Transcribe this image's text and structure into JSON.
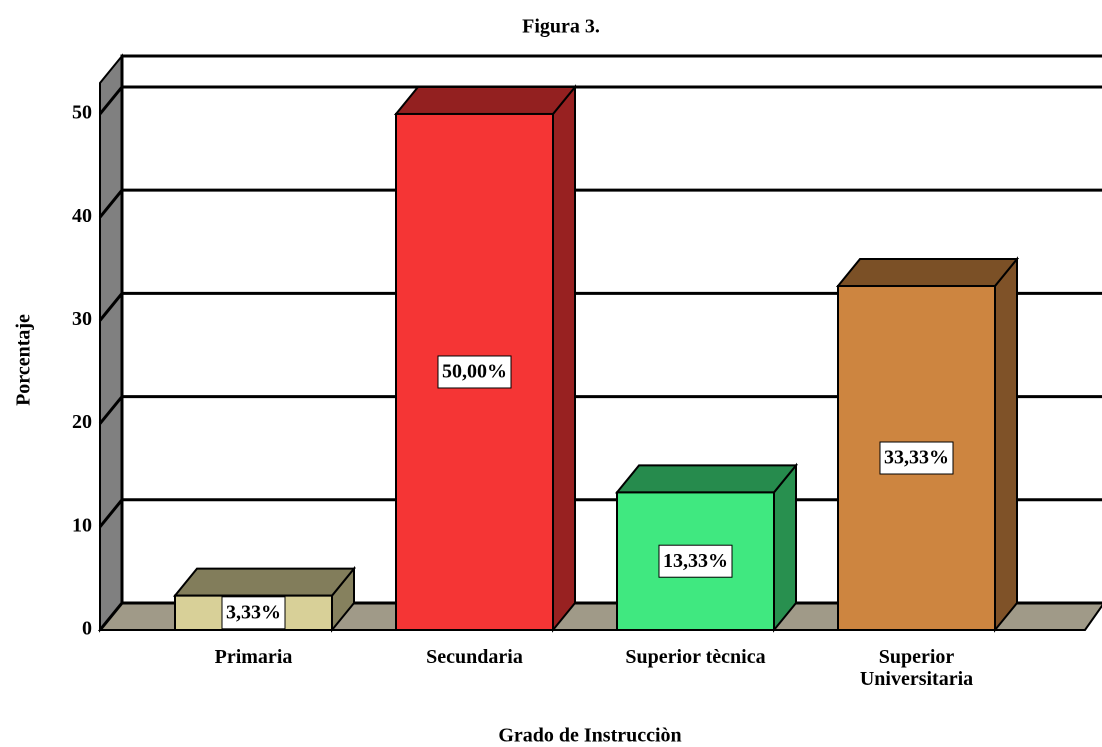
{
  "chart_data": {
    "type": "bar3d",
    "title": "Figura 3.",
    "x_label": "Grado de Instrucciòn",
    "y_label": "Porcentaje",
    "categories": [
      "Primaria",
      "Secundaria",
      "Superior tècnica",
      "Superior Universitaria"
    ],
    "values": [
      3.33,
      50,
      13.33,
      33.33
    ],
    "value_labels": [
      "3,33%",
      "50,00%",
      "13,33%",
      "33,33%"
    ],
    "colors": [
      "#d8d098",
      "#f53535",
      "#40e880",
      "#cd8540"
    ],
    "ylim": [
      0,
      53
    ],
    "yticks": [
      0,
      10,
      20,
      30,
      40,
      50
    ],
    "grid": true
  }
}
